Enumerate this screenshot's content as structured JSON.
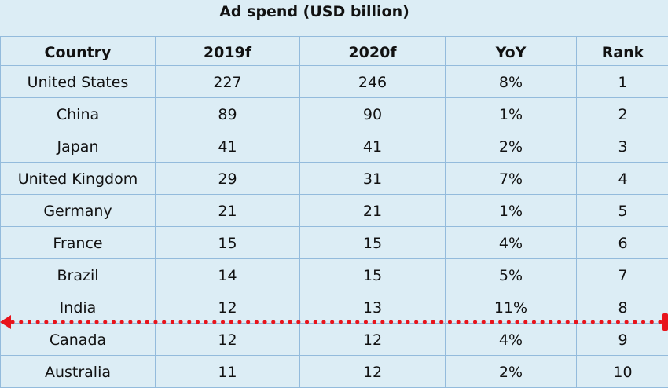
{
  "title": "Ad spend (USD billion)",
  "headers": [
    "Country",
    "2019f",
    "2020f",
    "YoY",
    "Rank"
  ],
  "rows": [
    [
      "United States",
      "227",
      "246",
      "8%",
      "1"
    ],
    [
      "China",
      "89",
      "90",
      "1%",
      "2"
    ],
    [
      "Japan",
      "41",
      "41",
      "2%",
      "3"
    ],
    [
      "United Kingdom",
      "29",
      "31",
      "7%",
      "4"
    ],
    [
      "Germany",
      "21",
      "21",
      "1%",
      "5"
    ],
    [
      "France",
      "15",
      "15",
      "4%",
      "6"
    ],
    [
      "Brazil",
      "14",
      "15",
      "5%",
      "7"
    ],
    [
      "India",
      "12",
      "13",
      "11%",
      "8"
    ],
    [
      "Canada",
      "12",
      "12",
      "4%",
      "9"
    ],
    [
      "Australia",
      "11",
      "12",
      "2%",
      "10"
    ]
  ],
  "annotation": {
    "type": "red-dotted-arrow",
    "color": "#e8141c",
    "direction": "left"
  }
}
